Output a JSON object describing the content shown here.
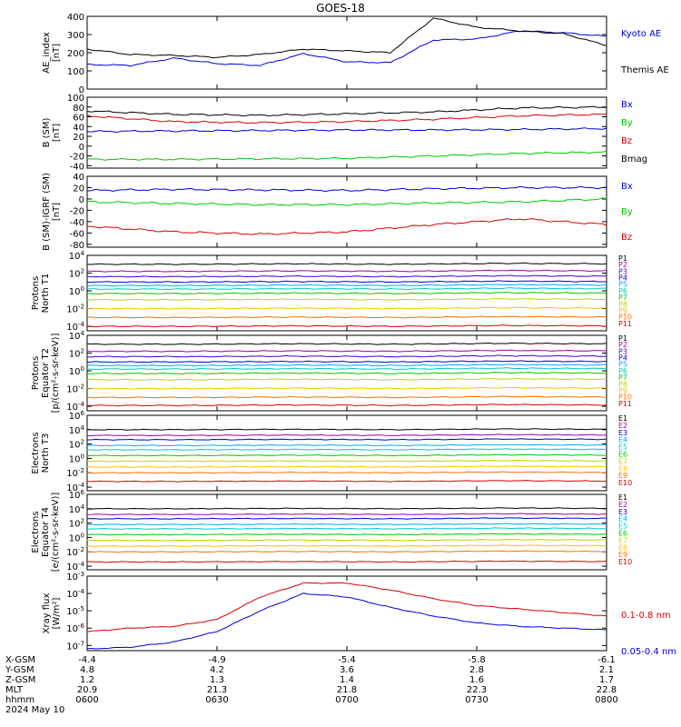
{
  "title": "GOES-18",
  "colors": {
    "black": "#000000",
    "blue": "#0000d8",
    "green": "#00c800",
    "red": "#d80000",
    "P": [
      "#000000",
      "#a000a0",
      "#4400cc",
      "#0000d8",
      "#00aaff",
      "#00c8c8",
      "#00c800",
      "#b8d800",
      "#ffc000",
      "#ff7000",
      "#d80000"
    ],
    "E": [
      "#000000",
      "#a000a0",
      "#0000d8",
      "#00aaff",
      "#00c8c8",
      "#00c800",
      "#b8d800",
      "#ffc000",
      "#ff7000",
      "#d80000"
    ]
  },
  "xtimes": [
    "0600",
    "0630",
    "0700",
    "0730",
    "0800"
  ],
  "footer": {
    "labels": [
      "X-GSM",
      "Y-GSM",
      "Z-GSM",
      "MLT",
      "hhmm",
      "2024 May 10"
    ],
    "x_gsm": [
      "-4.4",
      "-4.9",
      "-5.4",
      "-5.8",
      "-6.1"
    ],
    "y_gsm": [
      "4.8",
      "4.2",
      "3.6",
      "2.8",
      "2.1"
    ],
    "z_gsm": [
      "1.2",
      "1.3",
      "1.4",
      "1.6",
      "1.7"
    ],
    "mlt": [
      "20.9",
      "21.3",
      "21.8",
      "22.3",
      "22.8"
    ],
    "hhmm": [
      "0600",
      "0630",
      "0700",
      "0730",
      "0800"
    ]
  },
  "chart_data": [
    {
      "type": "line",
      "ylabel": "AE_index [nT]",
      "ylim": [
        0,
        400
      ],
      "yticks": [
        0,
        100,
        200,
        300,
        400
      ],
      "x": [
        "06:00",
        "06:10",
        "06:20",
        "06:30",
        "06:40",
        "06:50",
        "07:00",
        "07:10",
        "07:20",
        "07:30",
        "07:40",
        "07:50",
        "08:00"
      ],
      "series": [
        {
          "name": "Kyoto AE",
          "color": "#0000d8",
          "values": [
            135,
            130,
            170,
            140,
            130,
            195,
            150,
            145,
            270,
            275,
            320,
            310,
            290
          ]
        },
        {
          "name": "Themis AE",
          "color": "#000000",
          "values": [
            220,
            190,
            185,
            175,
            190,
            220,
            210,
            200,
            390,
            340,
            320,
            305,
            240
          ]
        }
      ]
    },
    {
      "type": "line",
      "ylabel": "B (SM) [nT]",
      "ylim": [
        -45,
        100
      ],
      "yticks": [
        -40,
        -20,
        0,
        20,
        40,
        60,
        80,
        100
      ],
      "x": [
        "06:00",
        "06:20",
        "06:40",
        "07:00",
        "07:20",
        "07:40",
        "08:00"
      ],
      "series": [
        {
          "name": "Bx",
          "color": "#0000d8",
          "values": [
            30,
            31,
            32,
            33,
            33,
            34,
            36
          ]
        },
        {
          "name": "By",
          "color": "#00c800",
          "values": [
            -27,
            -27,
            -26,
            -25,
            -20,
            -15,
            -12
          ]
        },
        {
          "name": "Bz",
          "color": "#d80000",
          "values": [
            62,
            50,
            48,
            50,
            55,
            62,
            65
          ]
        },
        {
          "name": "Bmag",
          "color": "#000000",
          "values": [
            72,
            65,
            63,
            66,
            70,
            78,
            80
          ]
        }
      ]
    },
    {
      "type": "line",
      "ylabel": "B (SM)-IGRF (SM) [nT]",
      "ylim": [
        -85,
        40
      ],
      "yticks": [
        -80,
        -60,
        -40,
        -20,
        0,
        20,
        40
      ],
      "x": [
        "06:00",
        "06:20",
        "06:40",
        "07:00",
        "07:20",
        "07:40",
        "08:00"
      ],
      "series": [
        {
          "name": "Bx",
          "color": "#0000d8",
          "values": [
            15,
            17,
            16,
            15,
            18,
            20,
            20
          ]
        },
        {
          "name": "By",
          "color": "#00c800",
          "values": [
            -5,
            -8,
            -10,
            -10,
            -7,
            -5,
            0
          ]
        },
        {
          "name": "Bz",
          "color": "#d80000",
          "values": [
            -48,
            -58,
            -62,
            -58,
            -45,
            -35,
            -45
          ]
        }
      ]
    },
    {
      "type": "line",
      "ylabel": "Protons North T1",
      "yscale": "log",
      "ylim": [
        -4.5,
        4
      ],
      "ytick_exps": [
        -4,
        -2,
        0,
        2,
        4
      ],
      "series_labels": [
        "P1",
        "P2",
        "P3",
        "P4",
        "P5",
        "P6",
        "P7",
        "P8",
        "P9",
        "P10",
        "P11"
      ],
      "levels_log10": [
        3.0,
        2.2,
        1.6,
        1.0,
        0.6,
        0.2,
        -0.3,
        -1.0,
        -2.0,
        -3.0,
        -4.0
      ]
    },
    {
      "type": "line",
      "ylabel": "Protons Equator T2",
      "units": "[p/(cm²-s-sr-keV)]",
      "yscale": "log",
      "ylim": [
        -4.5,
        4
      ],
      "ytick_exps": [
        -4,
        -2,
        0,
        2,
        4
      ],
      "series_labels": [
        "P1",
        "P2",
        "P3",
        "P4",
        "P5",
        "P6",
        "P7",
        "P8",
        "P9",
        "P10",
        "P11"
      ],
      "levels_log10": [
        3.0,
        2.2,
        1.6,
        1.0,
        0.6,
        0.2,
        -0.3,
        -1.0,
        -2.0,
        -3.0,
        -3.9
      ]
    },
    {
      "type": "line",
      "ylabel": "Electrons North T3",
      "yscale": "log",
      "ylim": [
        -4.5,
        6
      ],
      "ytick_exps": [
        -4,
        -2,
        0,
        2,
        4,
        6
      ],
      "series_labels": [
        "E1",
        "E2",
        "E3",
        "E4",
        "E5",
        "E6",
        "E7",
        "E8",
        "E9",
        "E10"
      ],
      "levels_log10": [
        4.0,
        3.2,
        2.6,
        1.8,
        1.2,
        0.4,
        -0.4,
        -1.2,
        -2.0,
        -3.2
      ]
    },
    {
      "type": "line",
      "ylabel": "Electrons Equator T4",
      "units": "[e/(cm²-s-sr-keV)]",
      "yscale": "log",
      "ylim": [
        -4.5,
        6
      ],
      "ytick_exps": [
        -4,
        -2,
        0,
        2,
        4,
        6
      ],
      "series_labels": [
        "E1",
        "E2",
        "E3",
        "E4",
        "E5",
        "E6",
        "E7",
        "E8",
        "E9",
        "E10"
      ],
      "levels_log10": [
        4.0,
        3.2,
        2.6,
        1.8,
        1.2,
        0.4,
        -0.4,
        -1.2,
        -2.0,
        -3.4
      ]
    },
    {
      "type": "line",
      "ylabel": "Xray flux [W/m²]",
      "yscale": "log",
      "ylim": [
        -7.3,
        -3
      ],
      "ytick_exps": [
        -7,
        -6,
        -5,
        -4,
        -3
      ],
      "x": [
        "06:00",
        "06:10",
        "06:20",
        "06:30",
        "06:40",
        "06:50",
        "07:00",
        "07:10",
        "07:20",
        "07:30",
        "07:40",
        "07:50",
        "08:00"
      ],
      "series": [
        {
          "name": "0.1-0.8 nm",
          "color": "#d80000",
          "values_log10": [
            -6.2,
            -6.0,
            -5.9,
            -5.5,
            -4.2,
            -3.4,
            -3.4,
            -3.8,
            -4.3,
            -4.7,
            -4.9,
            -5.1,
            -5.3
          ]
        },
        {
          "name": "0.05-0.4 nm",
          "color": "#0000d8",
          "values_log10": [
            -7.2,
            -7.1,
            -6.8,
            -6.2,
            -5.0,
            -4.0,
            -4.2,
            -4.8,
            -5.3,
            -5.7,
            -5.9,
            -6.0,
            -6.1
          ]
        }
      ]
    }
  ]
}
